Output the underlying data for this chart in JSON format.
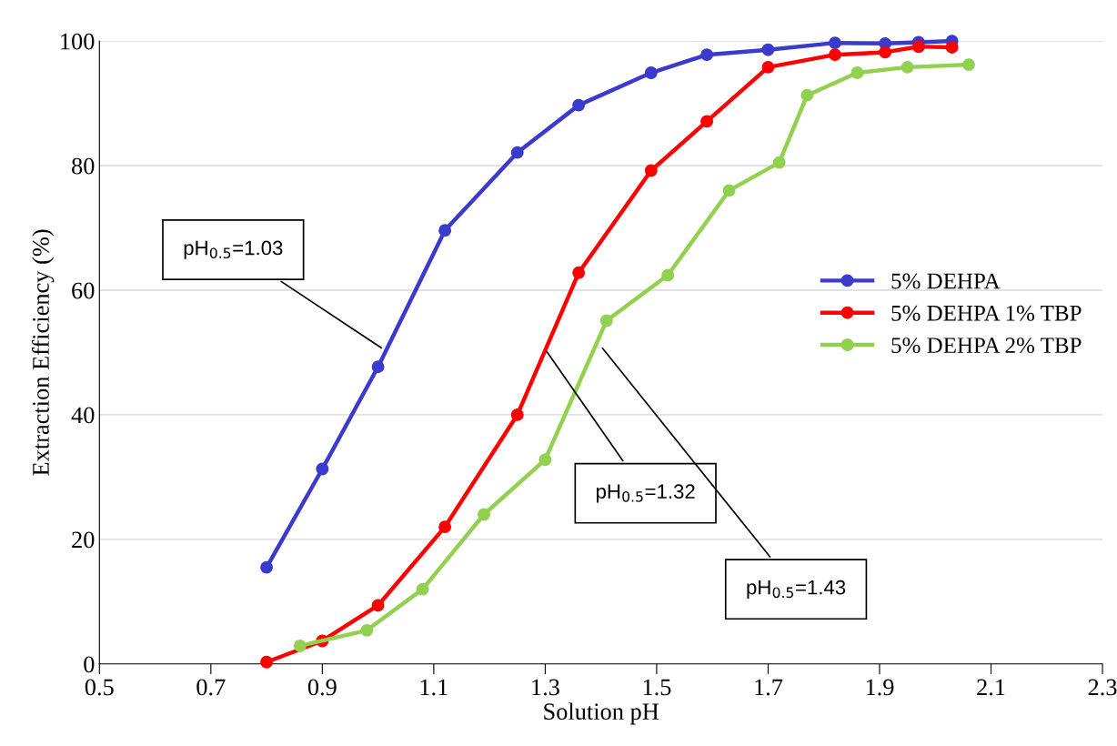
{
  "chart_data": {
    "type": "line",
    "xlabel": "Solution pH",
    "ylabel": "Extraction Efficiency (%)",
    "xlim": [
      0.5,
      2.3
    ],
    "xticks": [
      0.5,
      0.7,
      0.9,
      1.1,
      1.3,
      1.5,
      1.7,
      1.9,
      2.1,
      2.3
    ],
    "ylim": [
      0,
      100
    ],
    "yticks": [
      0,
      20,
      40,
      60,
      80,
      100
    ],
    "grid": "y",
    "legend": "right",
    "marker": "circle",
    "line_style": "solid",
    "series": [
      {
        "name": "5% DEHPA",
        "color": "#3a3acc",
        "x": [
          0.8,
          0.9,
          1.0,
          1.12,
          1.25,
          1.36,
          1.49,
          1.59,
          1.7,
          1.82,
          1.91,
          1.97,
          2.03
        ],
        "values": [
          15.5,
          31.3,
          47.7,
          69.6,
          82.1,
          89.7,
          94.9,
          97.8,
          98.6,
          99.7,
          99.6,
          99.8,
          100
        ]
      },
      {
        "name": "5% DEHPA 1% TBP",
        "color": "#ff0000",
        "x": [
          0.8,
          0.9,
          1.0,
          1.12,
          1.25,
          1.36,
          1.49,
          1.59,
          1.7,
          1.82,
          1.91,
          1.97,
          2.03
        ],
        "values": [
          0.3,
          3.7,
          9.4,
          22.0,
          40.0,
          62.8,
          79.2,
          87.1,
          95.8,
          97.8,
          98.2,
          99.1,
          99.0
        ]
      },
      {
        "name": "5% DEHPA 2% TBP",
        "color": "#92d050",
        "x": [
          0.86,
          0.98,
          1.08,
          1.19,
          1.3,
          1.41,
          1.52,
          1.63,
          1.72,
          1.77,
          1.86,
          1.95,
          2.06
        ],
        "values": [
          2.9,
          5.4,
          12.0,
          24.0,
          32.8,
          55.1,
          62.4,
          76.0,
          80.5,
          91.3,
          94.9,
          95.8,
          96.2
        ]
      }
    ],
    "annotations": [
      {
        "text": "pH$_{0.5}$=1.03",
        "x": 1.01,
        "y": 50.5
      },
      {
        "text": "pH$_{0.5}$=1.32",
        "x": 1.3,
        "y": 50.5
      },
      {
        "text": "pH$_{0.5}$=1.43",
        "x": 1.4,
        "y": 51
      }
    ]
  }
}
